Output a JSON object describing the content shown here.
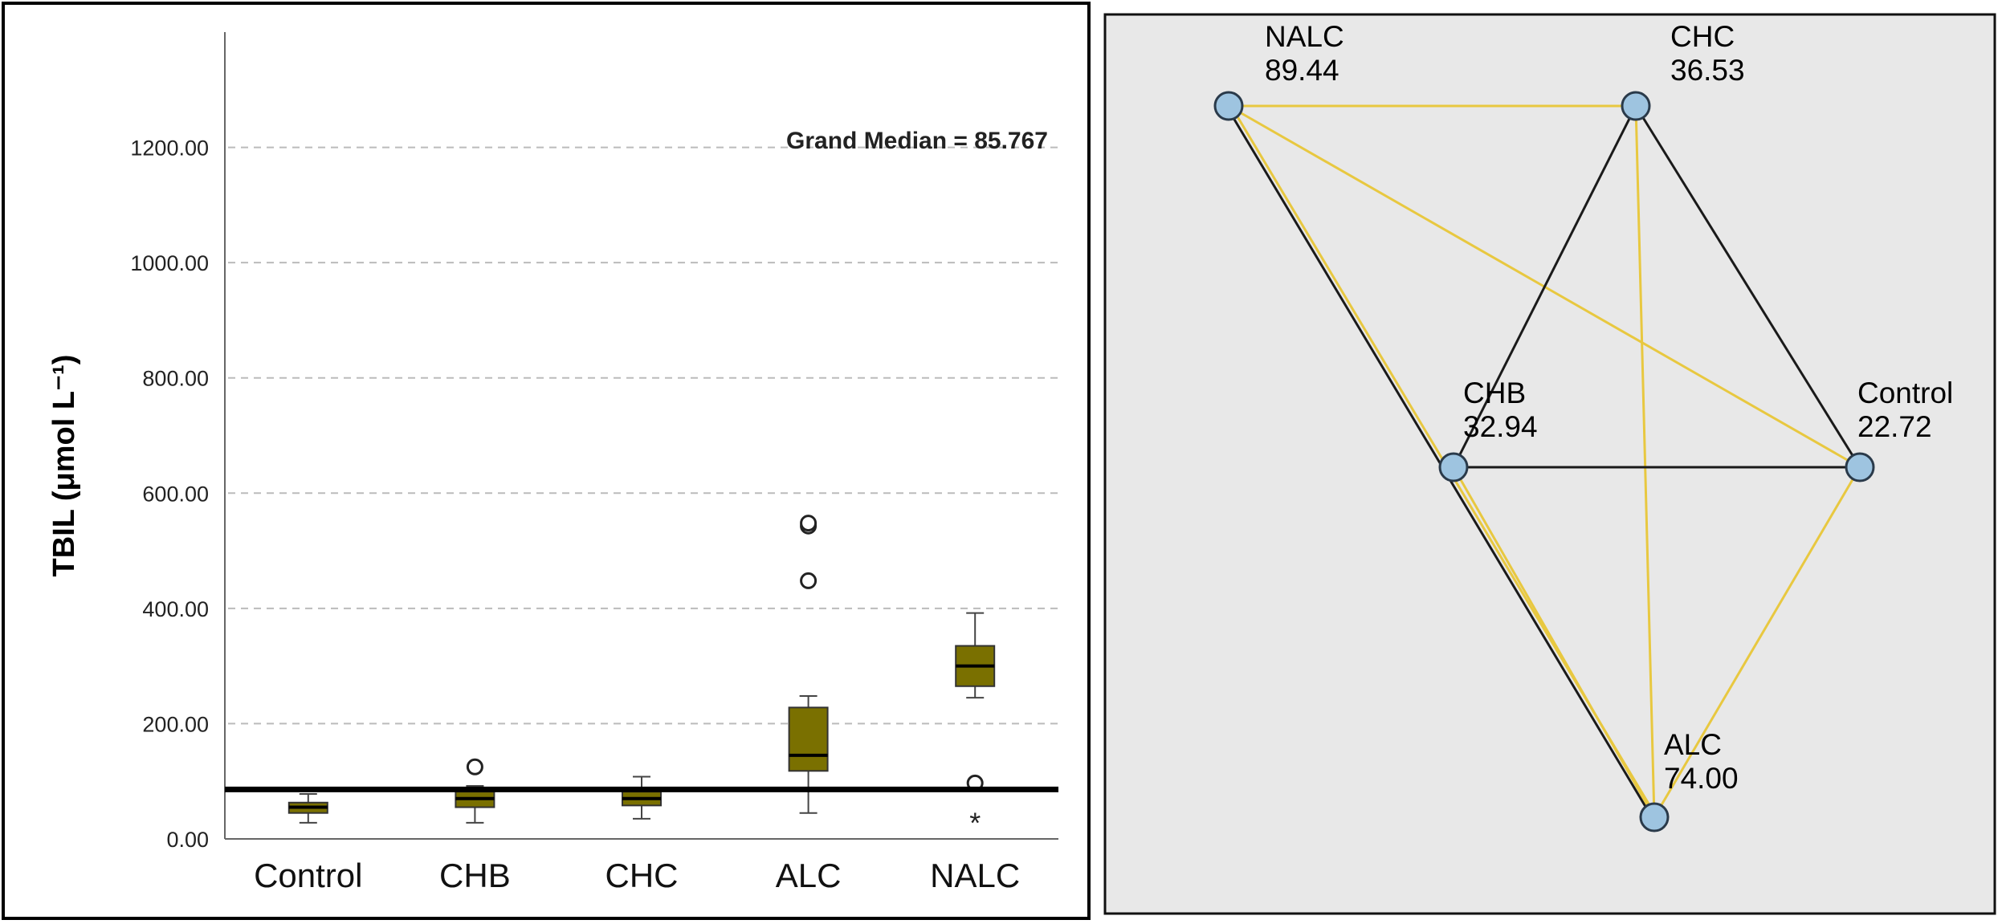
{
  "chart_data": [
    {
      "type": "box",
      "ylabel": "TBIL (μmol L⁻¹)",
      "ylim": [
        0,
        1400
      ],
      "yticks": [
        0,
        200,
        400,
        600,
        800,
        1000,
        1200
      ],
      "ytick_labels": [
        "0.00",
        "200.00",
        "400.00",
        "600.00",
        "800.00",
        "1000.00",
        "1200.00"
      ],
      "grid": "horizontal-dashed",
      "categories": [
        "Control",
        "CHB",
        "CHC",
        "ALC",
        "NALC"
      ],
      "boxes": [
        {
          "name": "Control",
          "whisker_low": 28,
          "q1": 45,
          "median": 55,
          "q3": 63,
          "whisker_high": 78,
          "outliers": [],
          "extremes": []
        },
        {
          "name": "CHB",
          "whisker_low": 28,
          "q1": 55,
          "median": 70,
          "q3": 82,
          "whisker_high": 92,
          "outliers": [
            125
          ],
          "extremes": []
        },
        {
          "name": "CHC",
          "whisker_low": 35,
          "q1": 58,
          "median": 70,
          "q3": 82,
          "whisker_high": 108,
          "outliers": [],
          "extremes": []
        },
        {
          "name": "ALC",
          "whisker_low": 45,
          "q1": 118,
          "median": 145,
          "q3": 228,
          "whisker_high": 248,
          "outliers": [
            448,
            543,
            548
          ],
          "extremes": []
        },
        {
          "name": "NALC",
          "whisker_low": 245,
          "q1": 265,
          "median": 300,
          "q3": 335,
          "whisker_high": 392,
          "outliers": [
            97
          ],
          "extremes": [
            33
          ]
        }
      ],
      "reference_line": {
        "value": 85.767,
        "label": "Grand Median = 85.767"
      },
      "box_color": "#7a7000",
      "extreme_marker": "*",
      "outlier_marker": "o"
    },
    {
      "type": "network",
      "background": "#e8e8e8",
      "nodes": [
        {
          "id": "NALC",
          "name": "NALC",
          "value": "89.44"
        },
        {
          "id": "CHC",
          "name": "CHC",
          "value": "36.53"
        },
        {
          "id": "CHB",
          "name": "CHB",
          "value": "32.94"
        },
        {
          "id": "Control",
          "name": "Control",
          "value": "22.72"
        },
        {
          "id": "ALC",
          "name": "ALC",
          "value": "74.00"
        }
      ],
      "edges": [
        {
          "source": "NALC",
          "target": "CHC",
          "style": "yellow"
        },
        {
          "source": "NALC",
          "target": "Control",
          "style": "yellow"
        },
        {
          "source": "NALC",
          "target": "ALC",
          "style": "black-yellow"
        },
        {
          "source": "CHC",
          "target": "CHB",
          "style": "black"
        },
        {
          "source": "CHC",
          "target": "Control",
          "style": "black"
        },
        {
          "source": "CHC",
          "target": "ALC",
          "style": "yellow"
        },
        {
          "source": "CHB",
          "target": "Control",
          "style": "black"
        },
        {
          "source": "CHB",
          "target": "ALC",
          "style": "yellow"
        },
        {
          "source": "Control",
          "target": "ALC",
          "style": "yellow"
        }
      ],
      "node_color": "#9ec4e0",
      "edge_colors": {
        "yellow": "#e8c840",
        "black": "#1a1a1a"
      }
    }
  ]
}
